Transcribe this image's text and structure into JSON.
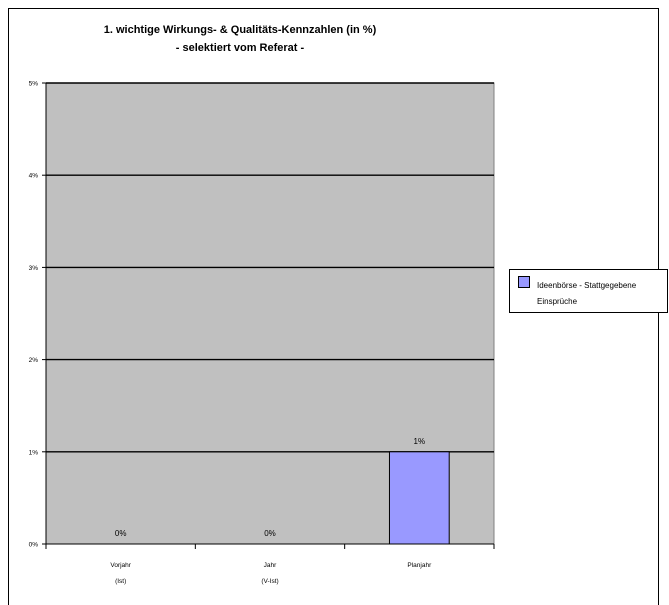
{
  "chart_data": {
    "type": "bar",
    "title": "1. wichtige Wirkungs- & Qualitäts-Kennzahlen (in %)",
    "subtitle": "- selektiert vom Referat -",
    "categories": [
      [
        "Vorjahr",
        "(Ist)"
      ],
      [
        "Jahr",
        "(V-Ist)"
      ],
      [
        "Planjahr"
      ]
    ],
    "series": [
      {
        "name": "Ideenbörse - Stattgegebene Einsprüche",
        "values": [
          0,
          0,
          1
        ],
        "data_labels": [
          "0%",
          "0%",
          "1%"
        ],
        "color": "#9999ff"
      }
    ],
    "ylim": [
      0,
      5
    ],
    "y_ticks": [
      "0%",
      "1%",
      "2%",
      "3%",
      "4%",
      "5%"
    ],
    "grid": true,
    "plot_background": "#c0c0c0",
    "legend_position": "right"
  }
}
